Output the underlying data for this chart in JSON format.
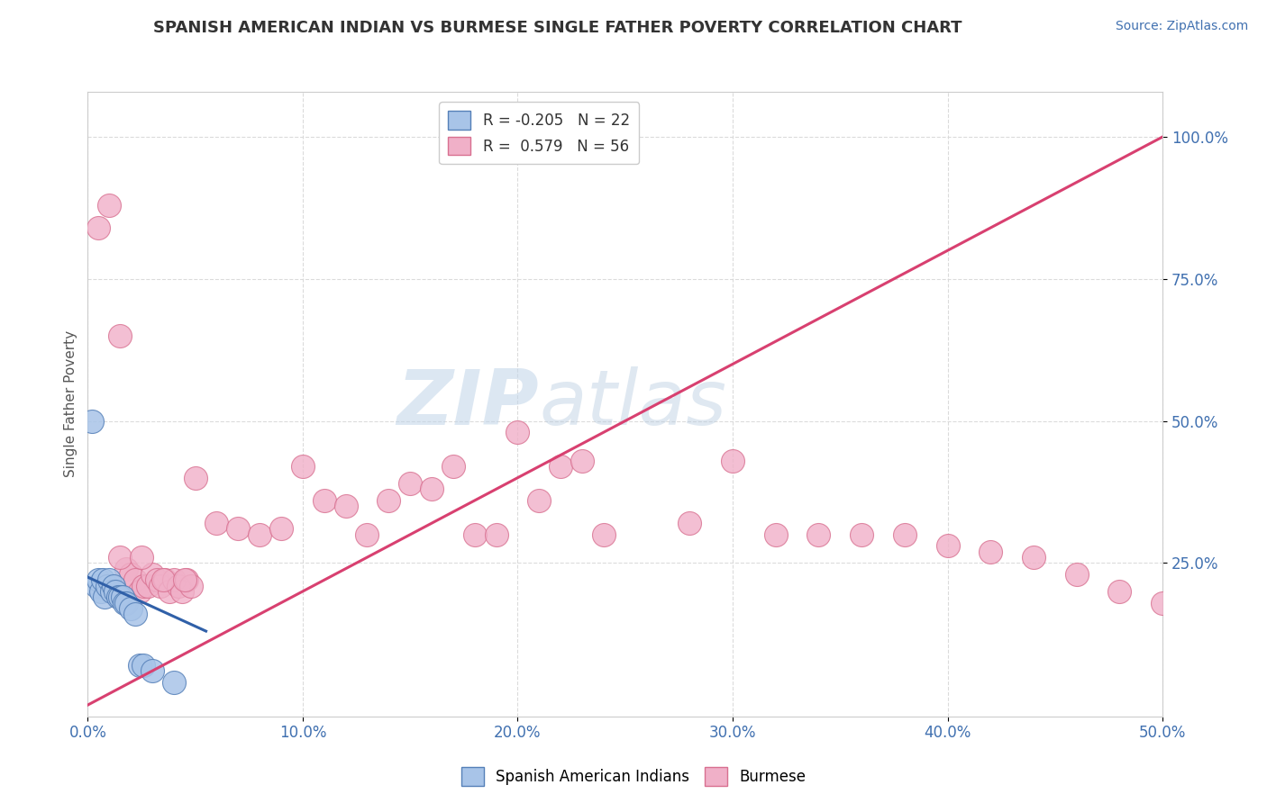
{
  "title": "SPANISH AMERICAN INDIAN VS BURMESE SINGLE FATHER POVERTY CORRELATION CHART",
  "source": "Source: ZipAtlas.com",
  "ylabel": "Single Father Poverty",
  "xlim": [
    0.0,
    0.5
  ],
  "ylim": [
    -0.02,
    1.08
  ],
  "xtick_labels": [
    "0.0%",
    "10.0%",
    "20.0%",
    "30.0%",
    "40.0%",
    "50.0%"
  ],
  "xtick_vals": [
    0.0,
    0.1,
    0.2,
    0.3,
    0.4,
    0.5
  ],
  "ytick_labels": [
    "25.0%",
    "50.0%",
    "75.0%",
    "100.0%"
  ],
  "ytick_vals": [
    0.25,
    0.5,
    0.75,
    1.0
  ],
  "blue_R": -0.205,
  "blue_N": 22,
  "pink_R": 0.579,
  "pink_N": 56,
  "blue_color": "#a8c4e8",
  "pink_color": "#f0b0c8",
  "blue_edge": "#5580b8",
  "pink_edge": "#d87090",
  "blue_line_color": "#3060a8",
  "pink_line_color": "#d84070",
  "watermark_zip": "ZIP",
  "watermark_atlas": "atlas",
  "watermark_color": "#ccdcec",
  "legend_blue_label": "Spanish American Indians",
  "legend_pink_label": "Burmese",
  "background_color": "#ffffff",
  "grid_color": "#d8d8d8",
  "blue_x": [
    0.002,
    0.004,
    0.005,
    0.006,
    0.007,
    0.008,
    0.009,
    0.01,
    0.011,
    0.012,
    0.013,
    0.014,
    0.015,
    0.016,
    0.017,
    0.018,
    0.02,
    0.022,
    0.024,
    0.026,
    0.03,
    0.04
  ],
  "blue_y": [
    0.5,
    0.21,
    0.22,
    0.2,
    0.22,
    0.19,
    0.21,
    0.22,
    0.2,
    0.21,
    0.2,
    0.19,
    0.19,
    0.19,
    0.18,
    0.18,
    0.17,
    0.16,
    0.07,
    0.07,
    0.06,
    0.04
  ],
  "pink_x": [
    0.005,
    0.01,
    0.012,
    0.015,
    0.018,
    0.02,
    0.022,
    0.024,
    0.026,
    0.028,
    0.03,
    0.032,
    0.034,
    0.036,
    0.038,
    0.04,
    0.042,
    0.044,
    0.046,
    0.048,
    0.05,
    0.06,
    0.07,
    0.08,
    0.09,
    0.1,
    0.11,
    0.12,
    0.13,
    0.14,
    0.15,
    0.16,
    0.17,
    0.18,
    0.19,
    0.2,
    0.21,
    0.22,
    0.23,
    0.24,
    0.28,
    0.3,
    0.32,
    0.34,
    0.36,
    0.38,
    0.4,
    0.42,
    0.44,
    0.46,
    0.48,
    0.5,
    0.015,
    0.025,
    0.035,
    0.045
  ],
  "pink_y": [
    0.84,
    0.88,
    0.2,
    0.65,
    0.24,
    0.23,
    0.22,
    0.2,
    0.21,
    0.21,
    0.23,
    0.22,
    0.21,
    0.22,
    0.2,
    0.22,
    0.21,
    0.2,
    0.22,
    0.21,
    0.4,
    0.32,
    0.31,
    0.3,
    0.31,
    0.42,
    0.36,
    0.35,
    0.3,
    0.36,
    0.39,
    0.38,
    0.42,
    0.3,
    0.3,
    0.48,
    0.36,
    0.42,
    0.43,
    0.3,
    0.32,
    0.43,
    0.3,
    0.3,
    0.3,
    0.3,
    0.28,
    0.27,
    0.26,
    0.23,
    0.2,
    0.18,
    0.26,
    0.26,
    0.22,
    0.22
  ],
  "pink_line_x0": 0.0,
  "pink_line_y0": 0.0,
  "pink_line_x1": 0.5,
  "pink_line_y1": 1.0
}
